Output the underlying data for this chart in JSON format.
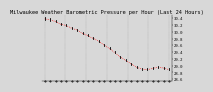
{
  "title": "Milwaukee Weather Barometric Pressure per Hour (Last 24 Hours)",
  "y_labels": [
    "30.4",
    "30.2",
    "30.0",
    "29.8",
    "29.6",
    "29.4",
    "29.2",
    "29.0",
    "28.8",
    "28.6"
  ],
  "y_min": 28.55,
  "y_max": 30.5,
  "pressure_values": [
    30.38,
    30.35,
    30.3,
    30.22,
    30.18,
    30.1,
    30.05,
    29.95,
    29.88,
    29.8,
    29.72,
    29.6,
    29.5,
    29.38,
    29.25,
    29.15,
    29.05,
    28.95,
    28.9,
    28.88,
    28.92,
    28.95,
    28.93,
    28.88
  ],
  "line_color": "#ff0000",
  "tick_color": "#000000",
  "bg_color": "#d8d8d8",
  "plot_bg_color": "#d8d8d8",
  "grid_color": "#888888",
  "title_color": "#000000",
  "title_fontsize": 3.8,
  "tick_fontsize": 2.8,
  "vgrid_count": 6,
  "n_points": 24
}
